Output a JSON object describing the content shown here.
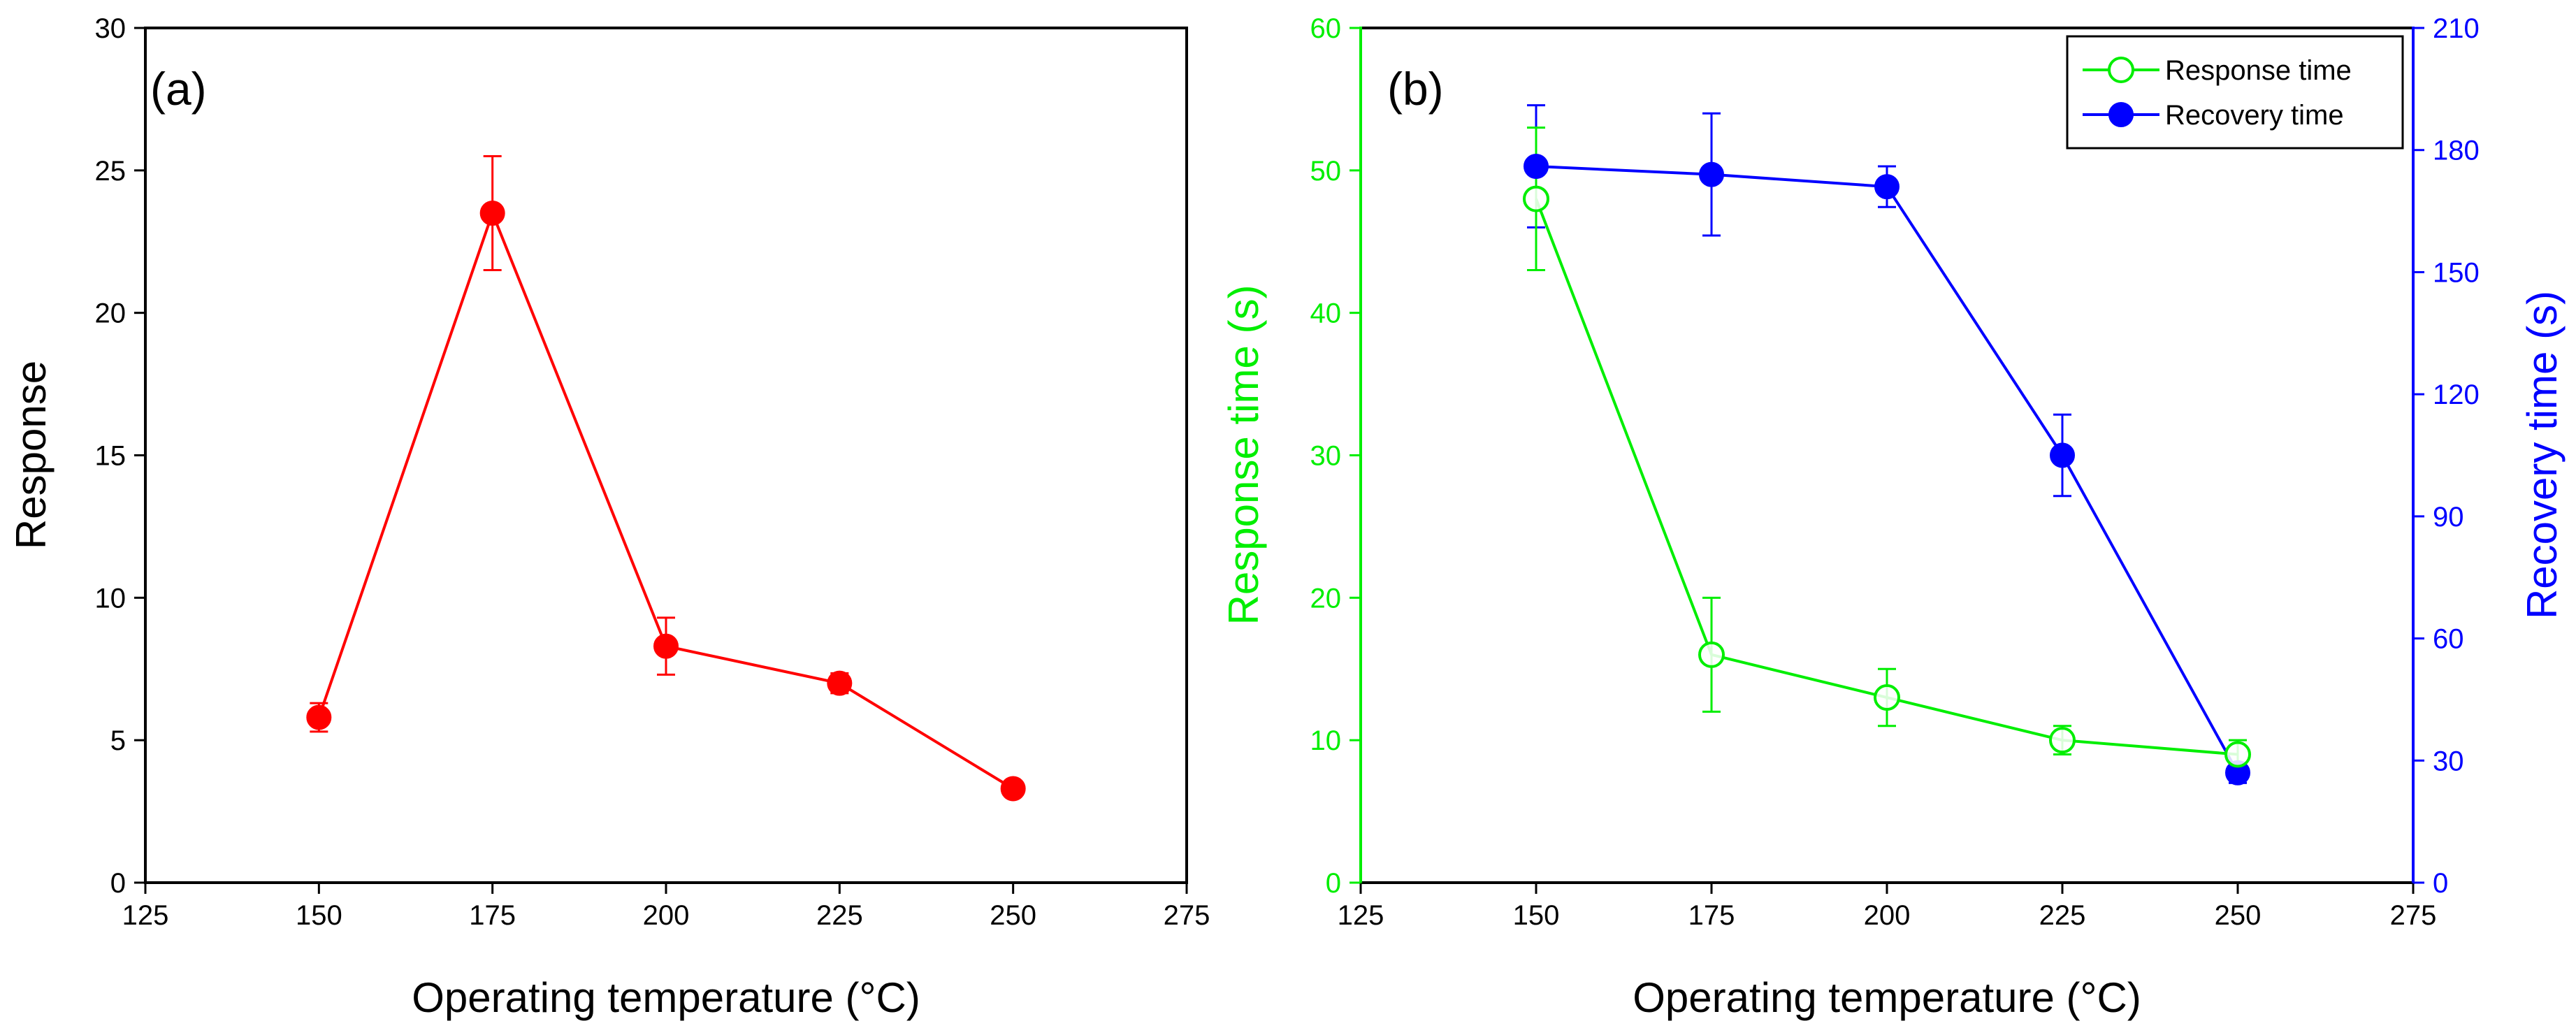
{
  "figure": {
    "description_free": true
  },
  "chart_data": [
    {
      "type": "line",
      "panel_label": "(a)",
      "title": "",
      "xlabel": "Operating temperature (°C)",
      "ylabel": "Response",
      "xlim": [
        125,
        275
      ],
      "ylim": [
        0,
        30
      ],
      "xticks": [
        125,
        150,
        175,
        200,
        225,
        250,
        275
      ],
      "yticks": [
        0,
        5,
        10,
        15,
        20,
        25,
        30
      ],
      "grid": false,
      "series": [
        {
          "name": "Response",
          "color": "#ff0000",
          "marker": "filled-circle",
          "x": [
            150,
            175,
            200,
            225,
            250
          ],
          "y": [
            5.8,
            23.5,
            8.3,
            7.0,
            3.3
          ],
          "err": [
            0.5,
            2.0,
            1.0,
            0.35,
            0.2
          ]
        }
      ]
    },
    {
      "type": "line",
      "panel_label": "(b)",
      "title": "",
      "xlabel": "Operating temperature (°C)",
      "ylabel_left": "Response time (s)",
      "ylabel_right": "Recovery time (s)",
      "xlim": [
        125,
        275
      ],
      "ylim_left": [
        0,
        60
      ],
      "ylim_right": [
        0,
        210
      ],
      "xticks": [
        125,
        150,
        175,
        200,
        225,
        250,
        275
      ],
      "yticks_left": [
        0,
        10,
        20,
        30,
        40,
        50,
        60
      ],
      "yticks_right": [
        0,
        30,
        60,
        90,
        120,
        150,
        180,
        210
      ],
      "left_axis_color": "#00ee00",
      "right_axis_color": "#0000ff",
      "grid": false,
      "legend_position": "top-right",
      "series": [
        {
          "name": "Response time",
          "axis": "left",
          "color": "#00ee00",
          "marker": "open-circle",
          "x": [
            150,
            175,
            200,
            225,
            250
          ],
          "y": [
            48,
            16,
            13,
            10,
            9
          ],
          "err": [
            5,
            4,
            2,
            1,
            1
          ]
        },
        {
          "name": "Recovery time",
          "axis": "right",
          "color": "#0000ff",
          "marker": "filled-circle",
          "x": [
            150,
            175,
            200,
            225,
            250
          ],
          "y": [
            176,
            174,
            171,
            105,
            27
          ],
          "err": [
            15,
            15,
            5,
            10,
            2.5
          ]
        }
      ]
    }
  ]
}
